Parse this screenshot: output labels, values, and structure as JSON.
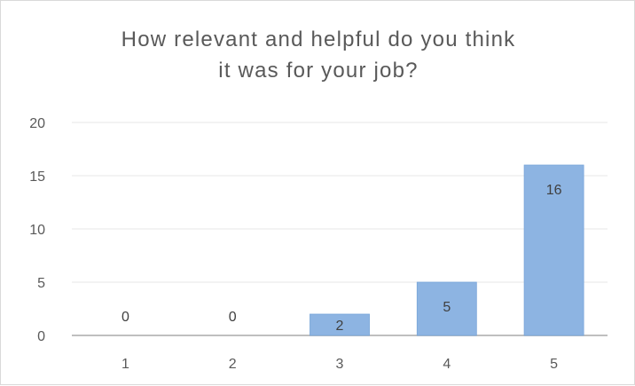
{
  "chart_data": {
    "type": "bar",
    "title_lines": [
      "How relevant and helpful do you think",
      "it was for your job?"
    ],
    "categories": [
      "1",
      "2",
      "3",
      "4",
      "5"
    ],
    "values": [
      0,
      0,
      2,
      5,
      16
    ],
    "data_labels": [
      "0",
      "0",
      "2",
      "5",
      "16"
    ],
    "y_ticks": [
      "0",
      "5",
      "10",
      "15",
      "20"
    ],
    "ylim": [
      0,
      20
    ],
    "grid": true,
    "legend": "none",
    "bar_color": "#8db4e2",
    "bar_edge_color": "#79a6d9",
    "gridline_color": "#e7e7e7",
    "axis_color": "#bfbfbf"
  }
}
